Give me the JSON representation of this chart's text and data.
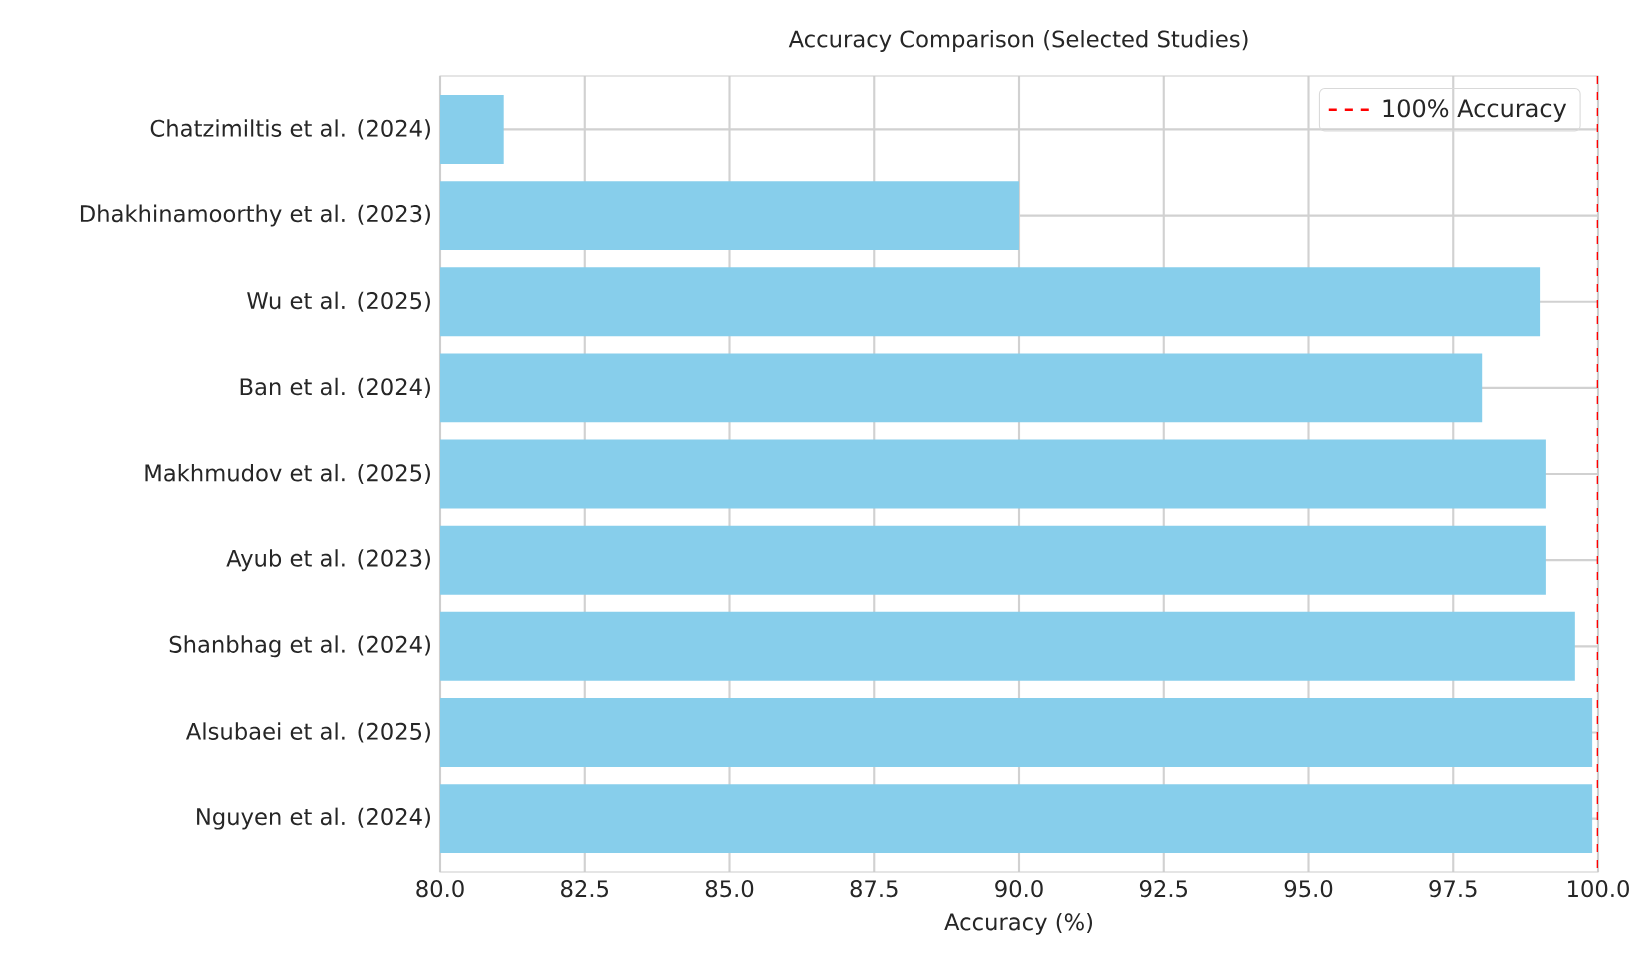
{
  "chart_data": {
    "type": "bar",
    "orientation": "horizontal",
    "title": "Accuracy Comparison (Selected Studies)",
    "xlabel": "Accuracy (%)",
    "categories": [
      "Chatzimiltis et al. (2024)",
      "Dhakhinamoorthy et al. (2023)",
      "Wu et al. (2025)",
      "Ban et al. (2024)",
      "Makhmudov et al. (2025)",
      "Ayub et al. (2023)",
      "Shanbhag et al. (2024)",
      "Alsubaei et al. (2025)",
      "Nguyen et al. (2024)"
    ],
    "values": [
      81.1,
      90.0,
      99.0,
      98.0,
      99.1,
      99.1,
      99.6,
      99.9,
      99.9
    ],
    "color": "#87ceeb",
    "xlim": [
      80,
      100
    ],
    "xticks": [
      {
        "value": 80,
        "label": "80.0"
      },
      {
        "value": 82.5,
        "label": "82.5"
      },
      {
        "value": 85,
        "label": "85.0"
      },
      {
        "value": 87.5,
        "label": "87.5"
      },
      {
        "value": 90,
        "label": "90.0"
      },
      {
        "value": 92.5,
        "label": "92.5"
      },
      {
        "value": 95,
        "label": "95.0"
      },
      {
        "value": 97.5,
        "label": "97.5"
      },
      {
        "value": 100,
        "label": "100.0"
      }
    ],
    "ref_lines": [
      {
        "axis": "x",
        "value": 100,
        "label": "100% Accuracy",
        "color": "#ff0000",
        "line_style": "dashed"
      }
    ],
    "grid": true,
    "legend": "top right"
  }
}
